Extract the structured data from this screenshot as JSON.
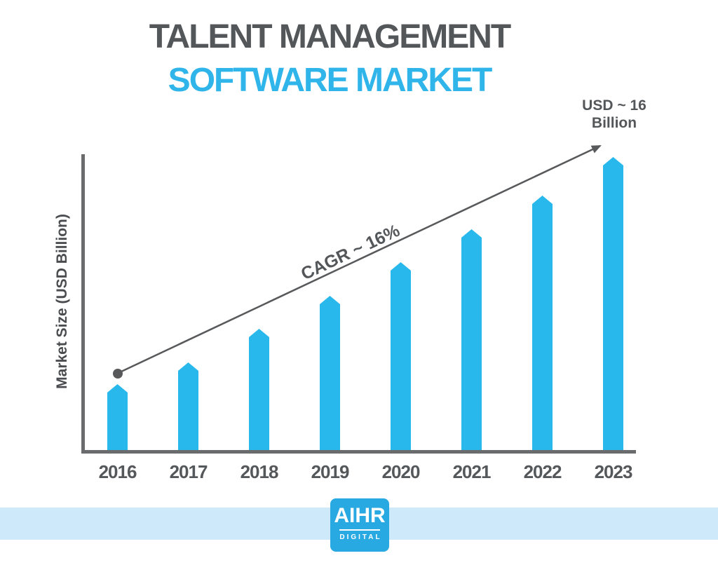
{
  "title": {
    "line1": "TALENT MANAGEMENT",
    "line2": "SOFTWARE MARKET",
    "line1_color": "#54575a",
    "line2_color": "#2fb5ea"
  },
  "chart_data": {
    "type": "bar",
    "categories": [
      "2016",
      "2017",
      "2018",
      "2019",
      "2020",
      "2021",
      "2022",
      "2023"
    ],
    "values": [
      3.7,
      4.9,
      6.7,
      8.5,
      10.3,
      12.1,
      13.9,
      16.0
    ],
    "title": "Talent Management Software Market",
    "xlabel": "",
    "ylabel": "Market Size (USD Billion)",
    "ylim": [
      0,
      16
    ],
    "grid": false,
    "legend": "none",
    "bar_color": "#29b8ec",
    "annotations": {
      "cagr_label": "CAGR ~ 16%",
      "endpoint_line1": "USD ~ 16",
      "endpoint_line2": "Billion"
    }
  },
  "colors": {
    "axis_gray": "#6a6b6d",
    "arrow_gray": "#58595b",
    "band_blue": "#cde9fa",
    "logo_blue": "#29a9e1",
    "text_dark": "#54575a"
  },
  "footer": {
    "logo_text": "AIHR",
    "logo_subtext": "DIGITAL"
  }
}
